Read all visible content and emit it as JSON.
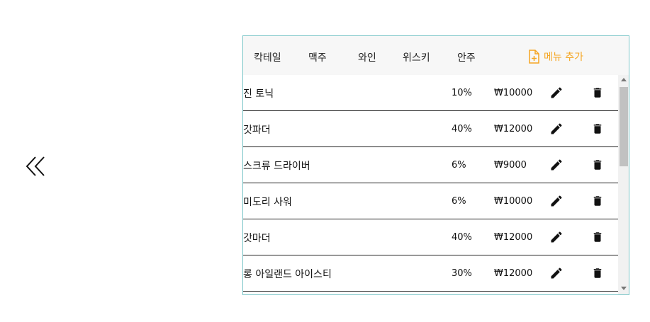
{
  "nav": {
    "back_icon": "double-chevron-left-icon"
  },
  "tabs": [
    "칵테일",
    "맥주",
    "와인",
    "위스키",
    "안주"
  ],
  "add_menu": {
    "label": "메뉴 추가",
    "icon": "file-plus-icon",
    "color": "#f5a623"
  },
  "menu_items": [
    {
      "name": "진 토닉",
      "abv": "10%",
      "price": "₩10000"
    },
    {
      "name": "갓파더",
      "abv": "40%",
      "price": "₩12000"
    },
    {
      "name": "스크류 드라이버",
      "abv": "6%",
      "price": "₩9000"
    },
    {
      "name": "미도리 사워",
      "abv": "6%",
      "price": "₩10000"
    },
    {
      "name": "갓마더",
      "abv": "40%",
      "price": "₩12000"
    },
    {
      "name": "롱 아일랜드 아이스티",
      "abv": "30%",
      "price": "₩12000"
    },
    {
      "name": "",
      "abv": "",
      "price": ""
    }
  ],
  "icons": {
    "edit": "pencil-icon",
    "delete": "trash-icon"
  },
  "colors": {
    "panel_border": "#7ec7c9",
    "tab_bar": "#f7f7f7"
  }
}
